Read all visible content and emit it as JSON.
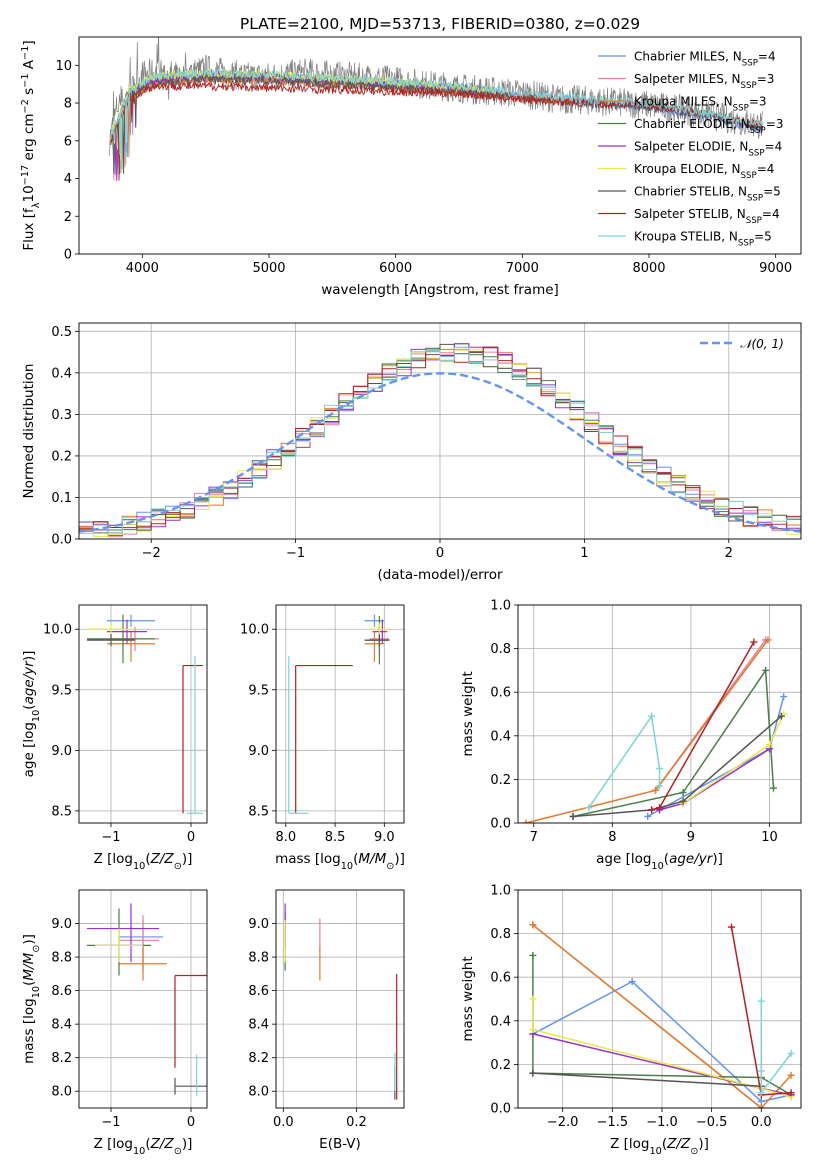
{
  "figure": {
    "title": "PLATE=2100, MJD=53713, FIBERID=0380, z=0.029"
  },
  "chart_data": [
    {
      "id": "spectrum",
      "type": "line",
      "xlabel": "wavelength [Angstrom, rest frame]",
      "ylabel": "Flux [f_λ 10^-17 erg cm^-2 s^-1 A^-1]",
      "xlim": [
        3500,
        9200
      ],
      "ylim": [
        0,
        11.5
      ],
      "xticks": [
        4000,
        5000,
        6000,
        7000,
        8000,
        9000
      ],
      "yticks": [
        0,
        2,
        4,
        6,
        8,
        10
      ],
      "grid": false,
      "legend_position": "top-right",
      "data_color": "#808080",
      "data_x": [
        3740,
        3800,
        3900,
        4000,
        4100,
        4300,
        4500,
        4800,
        5000,
        5300,
        5600,
        5800,
        6000,
        6200,
        6500,
        6800,
        7000,
        7300,
        7600,
        8000,
        8300,
        8600,
        8900
      ],
      "data_y": [
        6.0,
        7.8,
        8.5,
        9.5,
        9.6,
        9.4,
        9.8,
        9.4,
        9.4,
        9.6,
        9.4,
        9.3,
        9.2,
        9.0,
        8.8,
        8.6,
        8.5,
        8.2,
        8.1,
        7.9,
        7.6,
        7.2,
        6.8
      ],
      "series": [
        {
          "name": "Chabrier MILES, N_SSP=4",
          "color": "#6495ed",
          "x": [
            3750,
            3900,
            4100,
            4500,
            5000,
            5500,
            6000,
            6500,
            7000,
            7500,
            8000,
            8500,
            8900
          ],
          "y": [
            6.2,
            8.6,
            9.2,
            9.4,
            9.3,
            9.1,
            9.0,
            8.7,
            8.4,
            8.1,
            7.8,
            7.2,
            6.6
          ]
        },
        {
          "name": "Salpeter MILES, N_SSP=3",
          "color": "#e680a0",
          "x": [
            3750,
            3900,
            4100,
            4500,
            5000,
            5500,
            6000,
            6500,
            7000,
            7500
          ],
          "y": [
            6.1,
            8.5,
            9.1,
            9.3,
            9.2,
            9.0,
            8.9,
            8.6,
            8.3,
            8.1
          ]
        },
        {
          "name": "Kroupa MILES, N_SSP=3",
          "color": "#e07b2c",
          "x": [
            3750,
            3900,
            4100,
            4500,
            5000,
            5500,
            6000,
            6500,
            7000,
            7420
          ],
          "y": [
            6.1,
            8.4,
            9.0,
            9.3,
            9.2,
            9.0,
            8.8,
            8.6,
            8.3,
            8.1
          ]
        },
        {
          "name": "Chabrier ELODIE, N_SSP=3",
          "color": "#4a7f4a",
          "x": [
            3750,
            3900,
            4100,
            4500,
            5000,
            5500,
            6000,
            6500,
            6800
          ],
          "y": [
            6.3,
            8.7,
            9.3,
            9.5,
            9.4,
            9.2,
            9.0,
            8.8,
            8.6
          ]
        },
        {
          "name": "Salpeter ELODIE, N_SSP=4",
          "color": "#9932cc",
          "x": [
            3750,
            3900,
            4100,
            4500,
            5000,
            5500,
            6000,
            6500,
            6800
          ],
          "y": [
            6.2,
            8.6,
            9.2,
            9.5,
            9.4,
            9.2,
            9.0,
            8.8,
            8.6
          ]
        },
        {
          "name": "Kroupa ELODIE, N_SSP=4",
          "color": "#e8e84a",
          "x": [
            3750,
            3900,
            4100,
            4500,
            5000,
            5500,
            6000,
            6500,
            6800
          ],
          "y": [
            6.4,
            8.8,
            9.4,
            9.6,
            9.5,
            9.3,
            9.1,
            8.8,
            8.6
          ]
        },
        {
          "name": "Chabrier STELIB, N_SSP=5",
          "color": "#555555",
          "x": [
            3750,
            3900,
            4100,
            4500,
            5000,
            5500,
            6000,
            6500,
            7000,
            7500,
            8000,
            8500,
            8900
          ],
          "y": [
            6.0,
            8.4,
            9.0,
            9.3,
            9.2,
            9.0,
            8.8,
            8.6,
            8.3,
            8.0,
            7.8,
            7.3,
            6.7
          ]
        },
        {
          "name": "Salpeter STELIB, N_SSP=4",
          "color": "#b22222",
          "x": [
            3750,
            3900,
            4100,
            4500,
            5000,
            5500,
            6000,
            6500,
            7000,
            7500,
            8000,
            8500,
            8900
          ],
          "y": [
            6.0,
            8.3,
            8.9,
            8.9,
            8.8,
            8.7,
            8.6,
            8.5,
            8.2,
            8.0,
            7.9,
            7.4,
            6.8
          ]
        },
        {
          "name": "Kroupa STELIB, N_SSP=5",
          "color": "#7fd4d4",
          "x": [
            3750,
            3900,
            4100,
            4500,
            5000,
            5500,
            6000,
            6500,
            7000,
            7500,
            8000,
            8500,
            8900
          ],
          "y": [
            6.3,
            8.7,
            9.4,
            9.6,
            9.5,
            9.3,
            9.1,
            8.9,
            8.5,
            8.2,
            8.0,
            7.4,
            6.9
          ]
        }
      ]
    },
    {
      "id": "residuals",
      "type": "line",
      "xlabel": "(data-model)/error",
      "ylabel": "Normed distribution",
      "xlim": [
        -2.5,
        2.5
      ],
      "ylim": [
        0,
        0.52
      ],
      "xticks": [
        -2,
        -1,
        0,
        1,
        2
      ],
      "xtick_labels": [
        "−2",
        "−1",
        "0",
        "1",
        "2"
      ],
      "yticks": [
        0.0,
        0.1,
        0.2,
        0.3,
        0.4,
        0.5
      ],
      "ytick_labels": [
        "0.0",
        "0.1",
        "0.2",
        "0.3",
        "0.4",
        "0.5"
      ],
      "grid": true,
      "legend_position": "top-right",
      "reference": {
        "name": "𝒩(0, 1)",
        "color": "#6495ed",
        "style": "dashed"
      },
      "histogram": {
        "bin_start": -2.5,
        "bin_width": 0.1,
        "note": "nine overlapping step histograms, one per model"
      }
    },
    {
      "id": "age-vs-Z",
      "type": "scatter",
      "xlabel": "Z [log10(Z/Z⊙)]",
      "ylabel": "age [log10(age/yr)]",
      "xlim": [
        -1.4,
        0.2
      ],
      "ylim": [
        8.4,
        10.2
      ],
      "xticks": [
        -1,
        0
      ],
      "xtick_labels": [
        "−1",
        "0"
      ],
      "yticks": [
        8.5,
        9.0,
        9.5,
        10.0
      ],
      "ytick_labels": [
        "8.5",
        "9.0",
        "9.5",
        "10.0"
      ],
      "grid": true
    },
    {
      "id": "age-vs-mass",
      "type": "scatter",
      "xlabel": "mass [log10(M/M⊙)]",
      "ylabel": "",
      "xlim": [
        7.9,
        9.2
      ],
      "ylim": [
        8.4,
        10.2
      ],
      "xticks": [
        8.0,
        8.5,
        9.0
      ],
      "xtick_labels": [
        "8.0",
        "8.5",
        "9.0"
      ],
      "yticks": [
        8.5,
        9.0,
        9.5,
        10.0
      ],
      "ytick_labels": [
        "8.5",
        "9.0",
        "9.5",
        "10.0"
      ],
      "grid": true
    },
    {
      "id": "weight-vs-age",
      "type": "line",
      "xlabel": "age [log10(age/yr)]",
      "ylabel": "mass weight",
      "xlim": [
        6.8,
        10.4
      ],
      "ylim": [
        0,
        1.0
      ],
      "xticks": [
        7,
        8,
        9,
        10
      ],
      "yticks": [
        0.0,
        0.2,
        0.4,
        0.6,
        0.8,
        1.0
      ],
      "ytick_labels": [
        "0.0",
        "0.2",
        "0.4",
        "0.6",
        "0.8",
        "1.0"
      ],
      "grid": true,
      "series": [
        {
          "color": "#6495ed",
          "x": [
            8.45,
            8.6,
            10.0,
            10.18
          ],
          "y": [
            0.03,
            0.06,
            0.34,
            0.58
          ]
        },
        {
          "color": "#e680a0",
          "x": [
            8.55,
            9.95
          ],
          "y": [
            0.15,
            0.84
          ]
        },
        {
          "color": "#e07b2c",
          "x": [
            6.9,
            8.55,
            9.98
          ],
          "y": [
            0.0,
            0.15,
            0.84
          ]
        },
        {
          "color": "#4a7f4a",
          "x": [
            7.5,
            8.9,
            9.95,
            10.05
          ],
          "y": [
            0.03,
            0.14,
            0.7,
            0.16
          ]
        },
        {
          "color": "#9932cc",
          "x": [
            8.6,
            8.9,
            10.0
          ],
          "y": [
            0.06,
            0.09,
            0.34
          ]
        },
        {
          "color": "#e8e84a",
          "x": [
            8.9,
            10.0,
            10.18
          ],
          "y": [
            0.09,
            0.36,
            0.5
          ]
        },
        {
          "color": "#555555",
          "x": [
            7.5,
            8.5,
            8.9,
            10.15
          ],
          "y": [
            0.03,
            0.06,
            0.1,
            0.49
          ]
        },
        {
          "color": "#b22222",
          "x": [
            8.5,
            8.6,
            9.8
          ],
          "y": [
            0.06,
            0.07,
            0.83
          ]
        },
        {
          "color": "#7fd4d4",
          "x": [
            7.7,
            8.5,
            8.6,
            8.6
          ],
          "y": [
            0.07,
            0.49,
            0.25,
            0.17
          ]
        }
      ]
    },
    {
      "id": "mass-vs-Z",
      "type": "scatter",
      "xlabel": "Z [log10(Z/Z⊙)]",
      "ylabel": "mass [log10(M/M⊙)]",
      "xlim": [
        -1.4,
        0.2
      ],
      "ylim": [
        7.9,
        9.2
      ],
      "xticks": [
        -1,
        0
      ],
      "xtick_labels": [
        "−1",
        "0"
      ],
      "yticks": [
        8.0,
        8.2,
        8.4,
        8.6,
        8.8,
        9.0
      ],
      "ytick_labels": [
        "8.0",
        "8.2",
        "8.4",
        "8.6",
        "8.8",
        "9.0"
      ],
      "grid": true
    },
    {
      "id": "mass-vs-EBV",
      "type": "scatter",
      "xlabel": "E(B-V)",
      "ylabel": "",
      "xlim": [
        -0.02,
        0.33
      ],
      "ylim": [
        7.9,
        9.2
      ],
      "xticks": [
        0.0,
        0.2
      ],
      "xtick_labels": [
        "0.0",
        "0.2"
      ],
      "yticks": [
        8.0,
        8.2,
        8.4,
        8.6,
        8.8,
        9.0
      ],
      "ytick_labels": [
        "8.0",
        "8.2",
        "8.4",
        "8.6",
        "8.8",
        "9.0"
      ],
      "grid": true
    },
    {
      "id": "weight-vs-Z",
      "type": "line",
      "xlabel": "Z [log10(Z/Z⊙)]",
      "ylabel": "mass weight",
      "xlim": [
        -2.45,
        0.4
      ],
      "ylim": [
        0,
        1.0
      ],
      "xticks": [
        -2.0,
        -1.5,
        -1.0,
        -0.5,
        0.0
      ],
      "xtick_labels": [
        "−2.0",
        "−1.5",
        "−1.0",
        "−0.5",
        "0.0"
      ],
      "yticks": [
        0.0,
        0.2,
        0.4,
        0.6,
        0.8,
        1.0
      ],
      "ytick_labels": [
        "0.0",
        "0.2",
        "0.4",
        "0.6",
        "0.8",
        "1.0"
      ],
      "grid": true,
      "series": [
        {
          "color": "#6495ed",
          "x": [
            -2.3,
            -1.3,
            0.0,
            0.3
          ],
          "y": [
            0.34,
            0.58,
            0.03,
            0.06
          ]
        },
        {
          "color": "#e680a0",
          "x": [
            -2.3,
            0.0
          ],
          "y": [
            0.84,
            0.0
          ]
        },
        {
          "color": "#e07b2c",
          "x": [
            -2.3,
            0.0,
            0.3
          ],
          "y": [
            0.84,
            0.0,
            0.15
          ]
        },
        {
          "color": "#4a7f4a",
          "x": [
            -2.3,
            -2.3,
            0.0,
            0.3
          ],
          "y": [
            0.7,
            0.16,
            0.14,
            0.06
          ]
        },
        {
          "color": "#9932cc",
          "x": [
            -2.3,
            0.0,
            0.3
          ],
          "y": [
            0.34,
            0.09,
            0.06
          ]
        },
        {
          "color": "#e8e84a",
          "x": [
            -2.3,
            -2.3,
            0.0,
            0.3
          ],
          "y": [
            0.5,
            0.36,
            0.09,
            0.05
          ]
        },
        {
          "color": "#555555",
          "x": [
            -2.3,
            0.0
          ],
          "y": [
            0.16,
            0.1
          ]
        },
        {
          "color": "#b22222",
          "x": [
            -0.3,
            0.0,
            0.3
          ],
          "y": [
            0.83,
            0.06,
            0.07
          ]
        },
        {
          "color": "#7fd4d4",
          "x": [
            0.0,
            0.0,
            0.0,
            0.3
          ],
          "y": [
            0.49,
            0.17,
            0.07,
            0.25
          ]
        }
      ]
    }
  ]
}
